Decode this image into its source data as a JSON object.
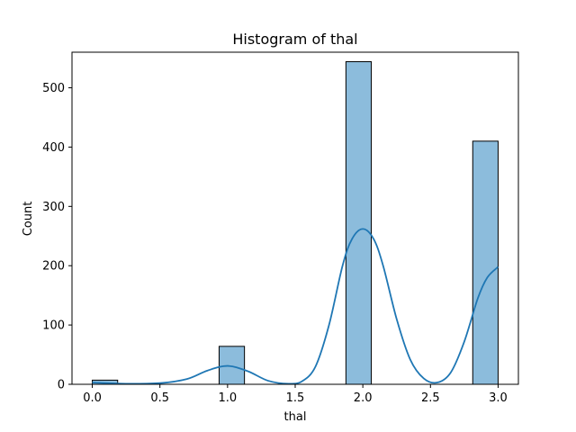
{
  "chart_data": {
    "type": "bar",
    "title": "Histogram of thal",
    "xlabel": "thal",
    "ylabel": "Count",
    "xlim": [
      -0.15,
      3.15
    ],
    "ylim": [
      0,
      560
    ],
    "xticks": [
      0.0,
      0.5,
      1.0,
      1.5,
      2.0,
      2.5,
      3.0
    ],
    "xtick_labels": [
      "0.0",
      "0.5",
      "1.0",
      "1.5",
      "2.0",
      "2.5",
      "3.0"
    ],
    "yticks": [
      0,
      100,
      200,
      300,
      400,
      500
    ],
    "ytick_labels": [
      "0",
      "100",
      "200",
      "300",
      "400",
      "500"
    ],
    "grid": false,
    "bins": [
      {
        "x0": 0.0,
        "x1": 0.1875,
        "count": 7
      },
      {
        "x0": 0.9375,
        "x1": 1.125,
        "count": 64
      },
      {
        "x0": 1.875,
        "x1": 2.0625,
        "count": 544
      },
      {
        "x0": 2.8125,
        "x1": 3.0,
        "count": 410
      }
    ],
    "kde": {
      "x": [
        0.0,
        0.25,
        0.5,
        0.7,
        0.85,
        1.0,
        1.15,
        1.3,
        1.45,
        1.55,
        1.65,
        1.75,
        1.85,
        1.92,
        2.0,
        2.08,
        2.15,
        2.25,
        2.35,
        2.45,
        2.55,
        2.65,
        2.75,
        2.85,
        2.92,
        3.0
      ],
      "y": [
        3,
        1,
        2,
        9,
        23,
        31,
        22,
        6,
        1,
        5,
        30,
        100,
        200,
        245,
        262,
        245,
        200,
        110,
        42,
        10,
        3,
        20,
        72,
        145,
        180,
        198
      ]
    },
    "colors": {
      "bar_fill": "#8cbcdc",
      "bar_edge": "#000000",
      "kde_line": "#1f77b4"
    }
  }
}
